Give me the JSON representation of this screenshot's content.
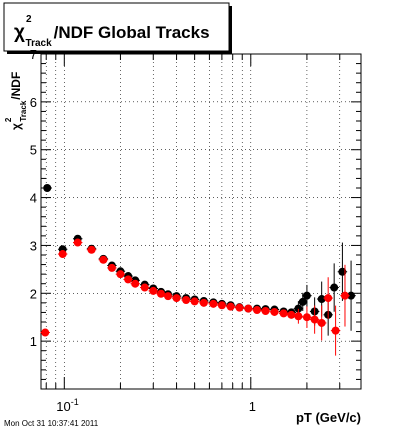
{
  "chart_data": {
    "type": "scatter",
    "title_parts": {
      "chi": "χ",
      "sup": "2",
      "sub": "Track",
      "rest": "/NDF  Global Tracks"
    },
    "ylabel_parts": {
      "chi": "χ",
      "sup": "2",
      "sub": "Track",
      "rest": "/NDF"
    },
    "xlabel": "pT (GeV/c)",
    "x_scale": "log",
    "xlim": [
      0.075,
      3.9
    ],
    "ylim": [
      0,
      7
    ],
    "x_ticks": [
      {
        "value": 0.1,
        "base": "10",
        "exp": "-1"
      },
      {
        "value": 1,
        "base": "1",
        "exp": ""
      }
    ],
    "y_ticks": [
      "1",
      "2",
      "3",
      "4",
      "5",
      "6",
      "7"
    ],
    "grid": true,
    "colors": {
      "series_black": "#000000",
      "series_red": "#ff0000",
      "axis": "#000000"
    },
    "series": [
      {
        "color": "#000000",
        "points": [
          {
            "x": 0.081,
            "y": 4.2
          },
          {
            "x": 0.098,
            "y": 2.92
          },
          {
            "x": 0.118,
            "y": 3.14
          },
          {
            "x": 0.14,
            "y": 2.93
          },
          {
            "x": 0.162,
            "y": 2.72
          },
          {
            "x": 0.18,
            "y": 2.58
          },
          {
            "x": 0.2,
            "y": 2.46
          },
          {
            "x": 0.22,
            "y": 2.36
          },
          {
            "x": 0.24,
            "y": 2.27
          },
          {
            "x": 0.27,
            "y": 2.18
          },
          {
            "x": 0.3,
            "y": 2.1
          },
          {
            "x": 0.33,
            "y": 2.03
          },
          {
            "x": 0.36,
            "y": 1.98
          },
          {
            "x": 0.4,
            "y": 1.94
          },
          {
            "x": 0.45,
            "y": 1.9
          },
          {
            "x": 0.5,
            "y": 1.87
          },
          {
            "x": 0.56,
            "y": 1.84
          },
          {
            "x": 0.63,
            "y": 1.81
          },
          {
            "x": 0.7,
            "y": 1.78
          },
          {
            "x": 0.78,
            "y": 1.75
          },
          {
            "x": 0.87,
            "y": 1.71
          },
          {
            "x": 0.97,
            "y": 1.68
          },
          {
            "x": 1.08,
            "y": 1.68
          },
          {
            "x": 1.2,
            "y": 1.67
          },
          {
            "x": 1.34,
            "y": 1.66
          },
          {
            "x": 1.5,
            "y": 1.62
          },
          {
            "x": 1.65,
            "y": 1.6
          },
          {
            "x": 1.8,
            "y": 1.68
          },
          {
            "x": 1.9,
            "y": 1.82
          },
          {
            "x": 2.0,
            "y": 1.95
          },
          {
            "x": 2.2,
            "y": 1.62
          },
          {
            "x": 2.4,
            "y": 1.88
          },
          {
            "x": 2.6,
            "y": 1.55
          },
          {
            "x": 2.8,
            "y": 2.12
          },
          {
            "x": 3.1,
            "y": 2.45
          },
          {
            "x": 3.45,
            "y": 1.95
          }
        ]
      },
      {
        "color": "#ff0000",
        "points": [
          {
            "x": 0.079,
            "y": 1.18
          },
          {
            "x": 0.098,
            "y": 2.82
          },
          {
            "x": 0.118,
            "y": 3.06
          },
          {
            "x": 0.14,
            "y": 2.91
          },
          {
            "x": 0.162,
            "y": 2.7
          },
          {
            "x": 0.18,
            "y": 2.53
          },
          {
            "x": 0.2,
            "y": 2.4
          },
          {
            "x": 0.22,
            "y": 2.29
          },
          {
            "x": 0.24,
            "y": 2.2
          },
          {
            "x": 0.27,
            "y": 2.12
          },
          {
            "x": 0.3,
            "y": 2.05
          },
          {
            "x": 0.33,
            "y": 1.99
          },
          {
            "x": 0.36,
            "y": 1.94
          },
          {
            "x": 0.4,
            "y": 1.9
          },
          {
            "x": 0.45,
            "y": 1.86
          },
          {
            "x": 0.5,
            "y": 1.83
          },
          {
            "x": 0.56,
            "y": 1.8
          },
          {
            "x": 0.63,
            "y": 1.78
          },
          {
            "x": 0.7,
            "y": 1.75
          },
          {
            "x": 0.78,
            "y": 1.72
          },
          {
            "x": 0.87,
            "y": 1.7
          },
          {
            "x": 0.97,
            "y": 1.68
          },
          {
            "x": 1.08,
            "y": 1.65
          },
          {
            "x": 1.2,
            "y": 1.63
          },
          {
            "x": 1.34,
            "y": 1.61
          },
          {
            "x": 1.5,
            "y": 1.58
          },
          {
            "x": 1.65,
            "y": 1.55
          },
          {
            "x": 1.8,
            "y": 1.52
          },
          {
            "x": 2.0,
            "y": 1.5
          },
          {
            "x": 2.2,
            "y": 1.45
          },
          {
            "x": 2.4,
            "y": 1.38
          },
          {
            "x": 2.6,
            "y": 1.9
          },
          {
            "x": 2.85,
            "y": 1.22
          },
          {
            "x": 3.2,
            "y": 1.95
          }
        ]
      }
    ]
  },
  "footer": {
    "timestamp": "Mon Oct 31 10:37:41 2011"
  }
}
